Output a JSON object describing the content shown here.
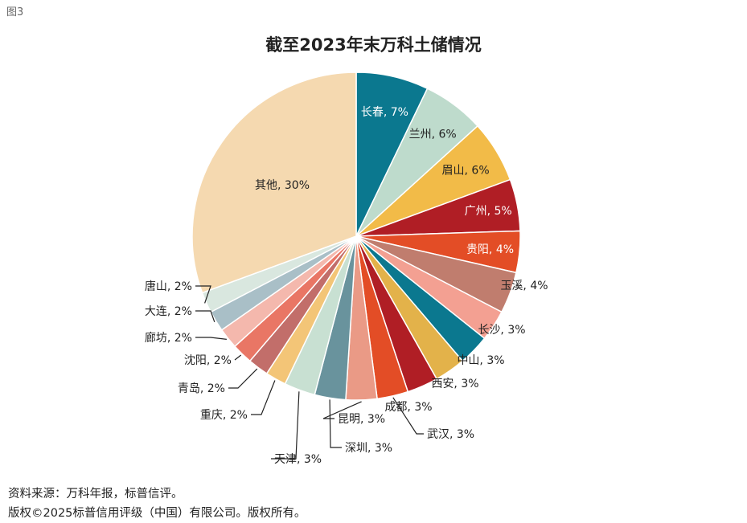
{
  "figure_label": "图3",
  "footer": {
    "source": "资料来源：万科年报，标普信评。",
    "copyright": "版权©2025标普信用评级（中国）有限公司。版权所有。"
  },
  "chart_data": {
    "type": "pie",
    "title": "截至2023年末万科土储情况",
    "unit": "%",
    "start_angle": "12 o'clock",
    "direction": "clockwise",
    "slices": [
      {
        "label": "长春",
        "value": 7,
        "display": "长春, 7%",
        "color": "#0b788f",
        "text_color": "#ffffff"
      },
      {
        "label": "兰州",
        "value": 6,
        "display": "兰州, 6%",
        "color": "#bedbcc",
        "text_color": "#222222"
      },
      {
        "label": "眉山",
        "value": 6,
        "display": "眉山, 6%",
        "color": "#f2bb48",
        "text_color": "#222222"
      },
      {
        "label": "广州",
        "value": 5,
        "display": "广州, 5%",
        "color": "#b01e25",
        "text_color": "#ffffff"
      },
      {
        "label": "贵阳",
        "value": 4,
        "display": "贵阳, 4%",
        "color": "#e34d26",
        "text_color": "#ffffff"
      },
      {
        "label": "玉溪",
        "value": 4,
        "display": "玉溪, 4%",
        "color": "#c07d6e",
        "text_color": "#222222"
      },
      {
        "label": "长沙",
        "value": 3,
        "display": "长沙, 3%",
        "color": "#f3a092",
        "text_color": "#222222"
      },
      {
        "label": "中山",
        "value": 3,
        "display": "中山, 3%",
        "color": "#0b788f",
        "text_color": "#222222"
      },
      {
        "label": "西安",
        "value": 3,
        "display": "西安, 3%",
        "color": "#e3b24a",
        "text_color": "#222222"
      },
      {
        "label": "成都",
        "value": 3,
        "display": "成都, 3%",
        "color": "#b01e25",
        "text_color": "#222222"
      },
      {
        "label": "武汉",
        "value": 3,
        "display": "武汉, 3%",
        "color": "#e34d26",
        "text_color": "#222222"
      },
      {
        "label": "昆明",
        "value": 3,
        "display": "昆明, 3%",
        "color": "#ea9a86",
        "text_color": "#222222"
      },
      {
        "label": "深圳",
        "value": 3,
        "display": "深圳, 3%",
        "color": "#69939d",
        "text_color": "#222222"
      },
      {
        "label": "天津",
        "value": 3,
        "display": "天津, 3%",
        "color": "#c8e0d2",
        "text_color": "#222222"
      },
      {
        "label": "重庆",
        "value": 2,
        "display": "重庆, 2%",
        "color": "#f3c577",
        "text_color": "#222222"
      },
      {
        "label": "青岛",
        "value": 2,
        "display": "青岛, 2%",
        "color": "#c26e6a",
        "text_color": "#222222"
      },
      {
        "label": "沈阳",
        "value": 2,
        "display": "沈阳, 2%",
        "color": "#e97665",
        "text_color": "#222222"
      },
      {
        "label": "廊坊",
        "value": 2,
        "display": "廊坊, 2%",
        "color": "#f4b8ad",
        "text_color": "#222222"
      },
      {
        "label": "大连",
        "value": 2,
        "display": "大连, 2%",
        "color": "#a9bfc7",
        "text_color": "#222222"
      },
      {
        "label": "唐山",
        "value": 2,
        "display": "唐山, 2%",
        "color": "#d9e7df",
        "text_color": "#222222"
      },
      {
        "label": "其他",
        "value": 30,
        "display": "其他, 30%",
        "color": "#f5d9b0",
        "text_color": "#222222"
      }
    ]
  }
}
